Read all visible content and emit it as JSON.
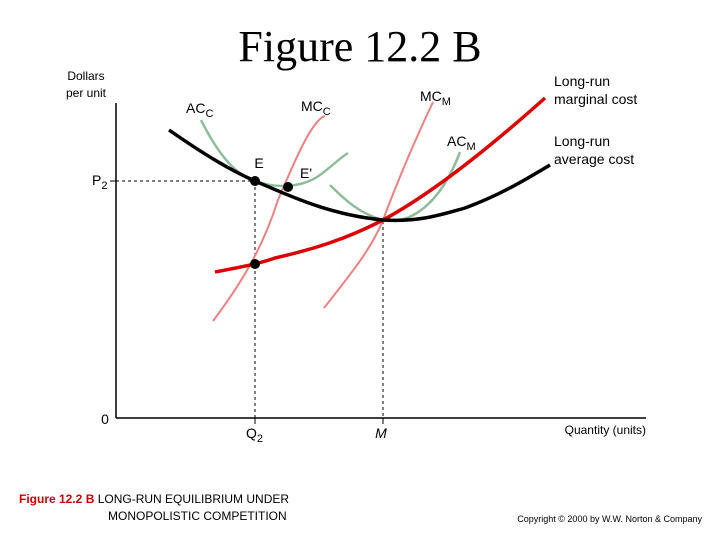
{
  "title": "Figure 12.2 B",
  "y_axis_label_line1": "Dollars",
  "y_axis_label_line2": "per unit",
  "x_axis_label": "Quantity (units)",
  "origin_label": "0",
  "price_label_main": "P",
  "price_label_sub": "2",
  "quantity_q2_main": "Q",
  "quantity_q2_sub": "2",
  "quantity_m_label": "M",
  "curve_labels": {
    "acc_main": "AC",
    "acc_sub": "C",
    "mcc_main": "MC",
    "mcc_sub": "C",
    "mcm_main": "MC",
    "mcm_sub": "M",
    "acm_main": "AC",
    "acm_sub": "M",
    "lrmc_line1": "Long-run",
    "lrmc_line2": "marginal cost",
    "lrac_line1": "Long-run",
    "lrac_line2": "average cost",
    "point_e": "E",
    "point_e_prime": "E'"
  },
  "caption": {
    "bold_label": "Figure 12.2 B",
    "line1": "LONG-RUN EQUILIBRIUM UNDER",
    "line2": "MONOPOLISTIC COMPETITION"
  },
  "copyright": "Copyright © 2000 by W.W. Norton & Company",
  "colors": {
    "long_run_average_cost": "#000000",
    "long_run_marginal_cost": "#dd0000",
    "short_run_marginal_cost": "#f08080",
    "short_run_average_cost": "#8fbc9a",
    "caption_label": "#cc0000"
  }
}
